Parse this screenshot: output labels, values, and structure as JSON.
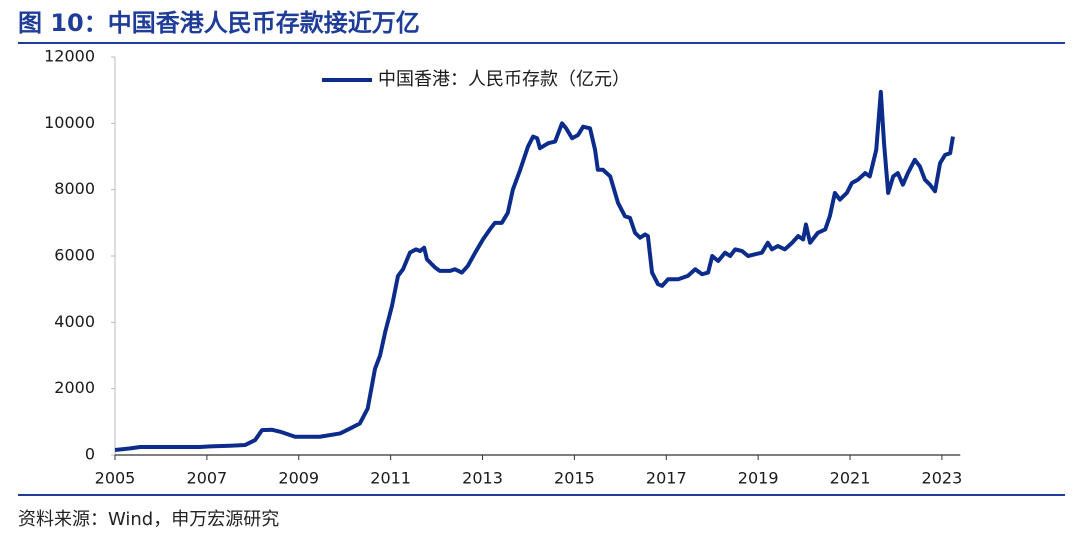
{
  "chart_data": {
    "type": "line",
    "title": "图 10：中国香港人民币存款接近万亿",
    "source": "资料来源：Wind，申万宏源研究",
    "xlim": [
      2005,
      2023.4
    ],
    "xticks": [
      2005,
      2007,
      2009,
      2011,
      2013,
      2015,
      2017,
      2019,
      2021,
      2023
    ],
    "ylim": [
      0,
      12000
    ],
    "yticks": [
      0,
      2000,
      4000,
      6000,
      8000,
      10000,
      12000
    ],
    "legend": "top",
    "x": [
      2005.0,
      2005.33,
      2005.55,
      2006.85,
      2007.07,
      2007.5,
      2007.83,
      2008.05,
      2008.2,
      2008.42,
      2008.6,
      2008.92,
      2009.46,
      2009.9,
      2010.12,
      2010.33,
      2010.5,
      2010.66,
      2010.77,
      2010.88,
      2011.03,
      2011.16,
      2011.27,
      2011.42,
      2011.55,
      2011.64,
      2011.73,
      2011.79,
      2011.97,
      2012.07,
      2012.29,
      2012.4,
      2012.55,
      2012.68,
      2012.84,
      2013.01,
      2013.16,
      2013.27,
      2013.42,
      2013.55,
      2013.66,
      2013.82,
      2013.99,
      2014.1,
      2014.19,
      2014.25,
      2014.43,
      2014.58,
      2014.73,
      2014.82,
      2014.95,
      2015.08,
      2015.19,
      2015.34,
      2015.45,
      2015.51,
      2015.62,
      2015.78,
      2015.95,
      2016.1,
      2016.21,
      2016.32,
      2016.43,
      2016.54,
      2016.6,
      2016.69,
      2016.82,
      2016.91,
      2017.04,
      2017.26,
      2017.47,
      2017.63,
      2017.78,
      2017.91,
      2018.0,
      2018.13,
      2018.28,
      2018.39,
      2018.5,
      2018.65,
      2018.78,
      2018.93,
      2019.08,
      2019.21,
      2019.3,
      2019.43,
      2019.58,
      2019.74,
      2019.87,
      2019.98,
      2020.04,
      2020.13,
      2020.3,
      2020.46,
      2020.56,
      2020.67,
      2020.78,
      2020.93,
      2021.04,
      2021.17,
      2021.33,
      2021.43,
      2021.57,
      2021.67,
      2021.74,
      2021.83,
      2021.94,
      2022.04,
      2022.15,
      2022.26,
      2022.41,
      2022.52,
      2022.63,
      2022.74,
      2022.85,
      2022.96,
      2023.07,
      2023.18,
      2023.24
    ],
    "series": [
      {
        "name": "中国香港：人民币存款（亿元）",
        "color": "#0c2c8c",
        "values": [
          150,
          200,
          240,
          240,
          260,
          280,
          300,
          450,
          750,
          760,
          700,
          550,
          550,
          650,
          800,
          950,
          1400,
          2600,
          3000,
          3700,
          4500,
          5400,
          5600,
          6100,
          6200,
          6150,
          6250,
          5900,
          5650,
          5550,
          5550,
          5600,
          5500,
          5700,
          6100,
          6500,
          6800,
          7000,
          7000,
          7300,
          8000,
          8600,
          9300,
          9600,
          9550,
          9250,
          9400,
          9450,
          10000,
          9850,
          9550,
          9650,
          9900,
          9850,
          9200,
          8600,
          8600,
          8400,
          7600,
          7200,
          7150,
          6700,
          6550,
          6650,
          6600,
          5500,
          5150,
          5100,
          5300,
          5300,
          5400,
          5600,
          5450,
          5500,
          6000,
          5850,
          6100,
          6000,
          6200,
          6150,
          6000,
          6050,
          6100,
          6400,
          6200,
          6300,
          6200,
          6400,
          6600,
          6500,
          6950,
          6400,
          6700,
          6800,
          7200,
          7900,
          7700,
          7900,
          8200,
          8300,
          8500,
          8400,
          9200,
          10950,
          9400,
          7900,
          8400,
          8500,
          8150,
          8500,
          8900,
          8700,
          8300,
          8150,
          7950,
          8800,
          9050,
          9100,
          9600
        ]
      }
    ]
  }
}
